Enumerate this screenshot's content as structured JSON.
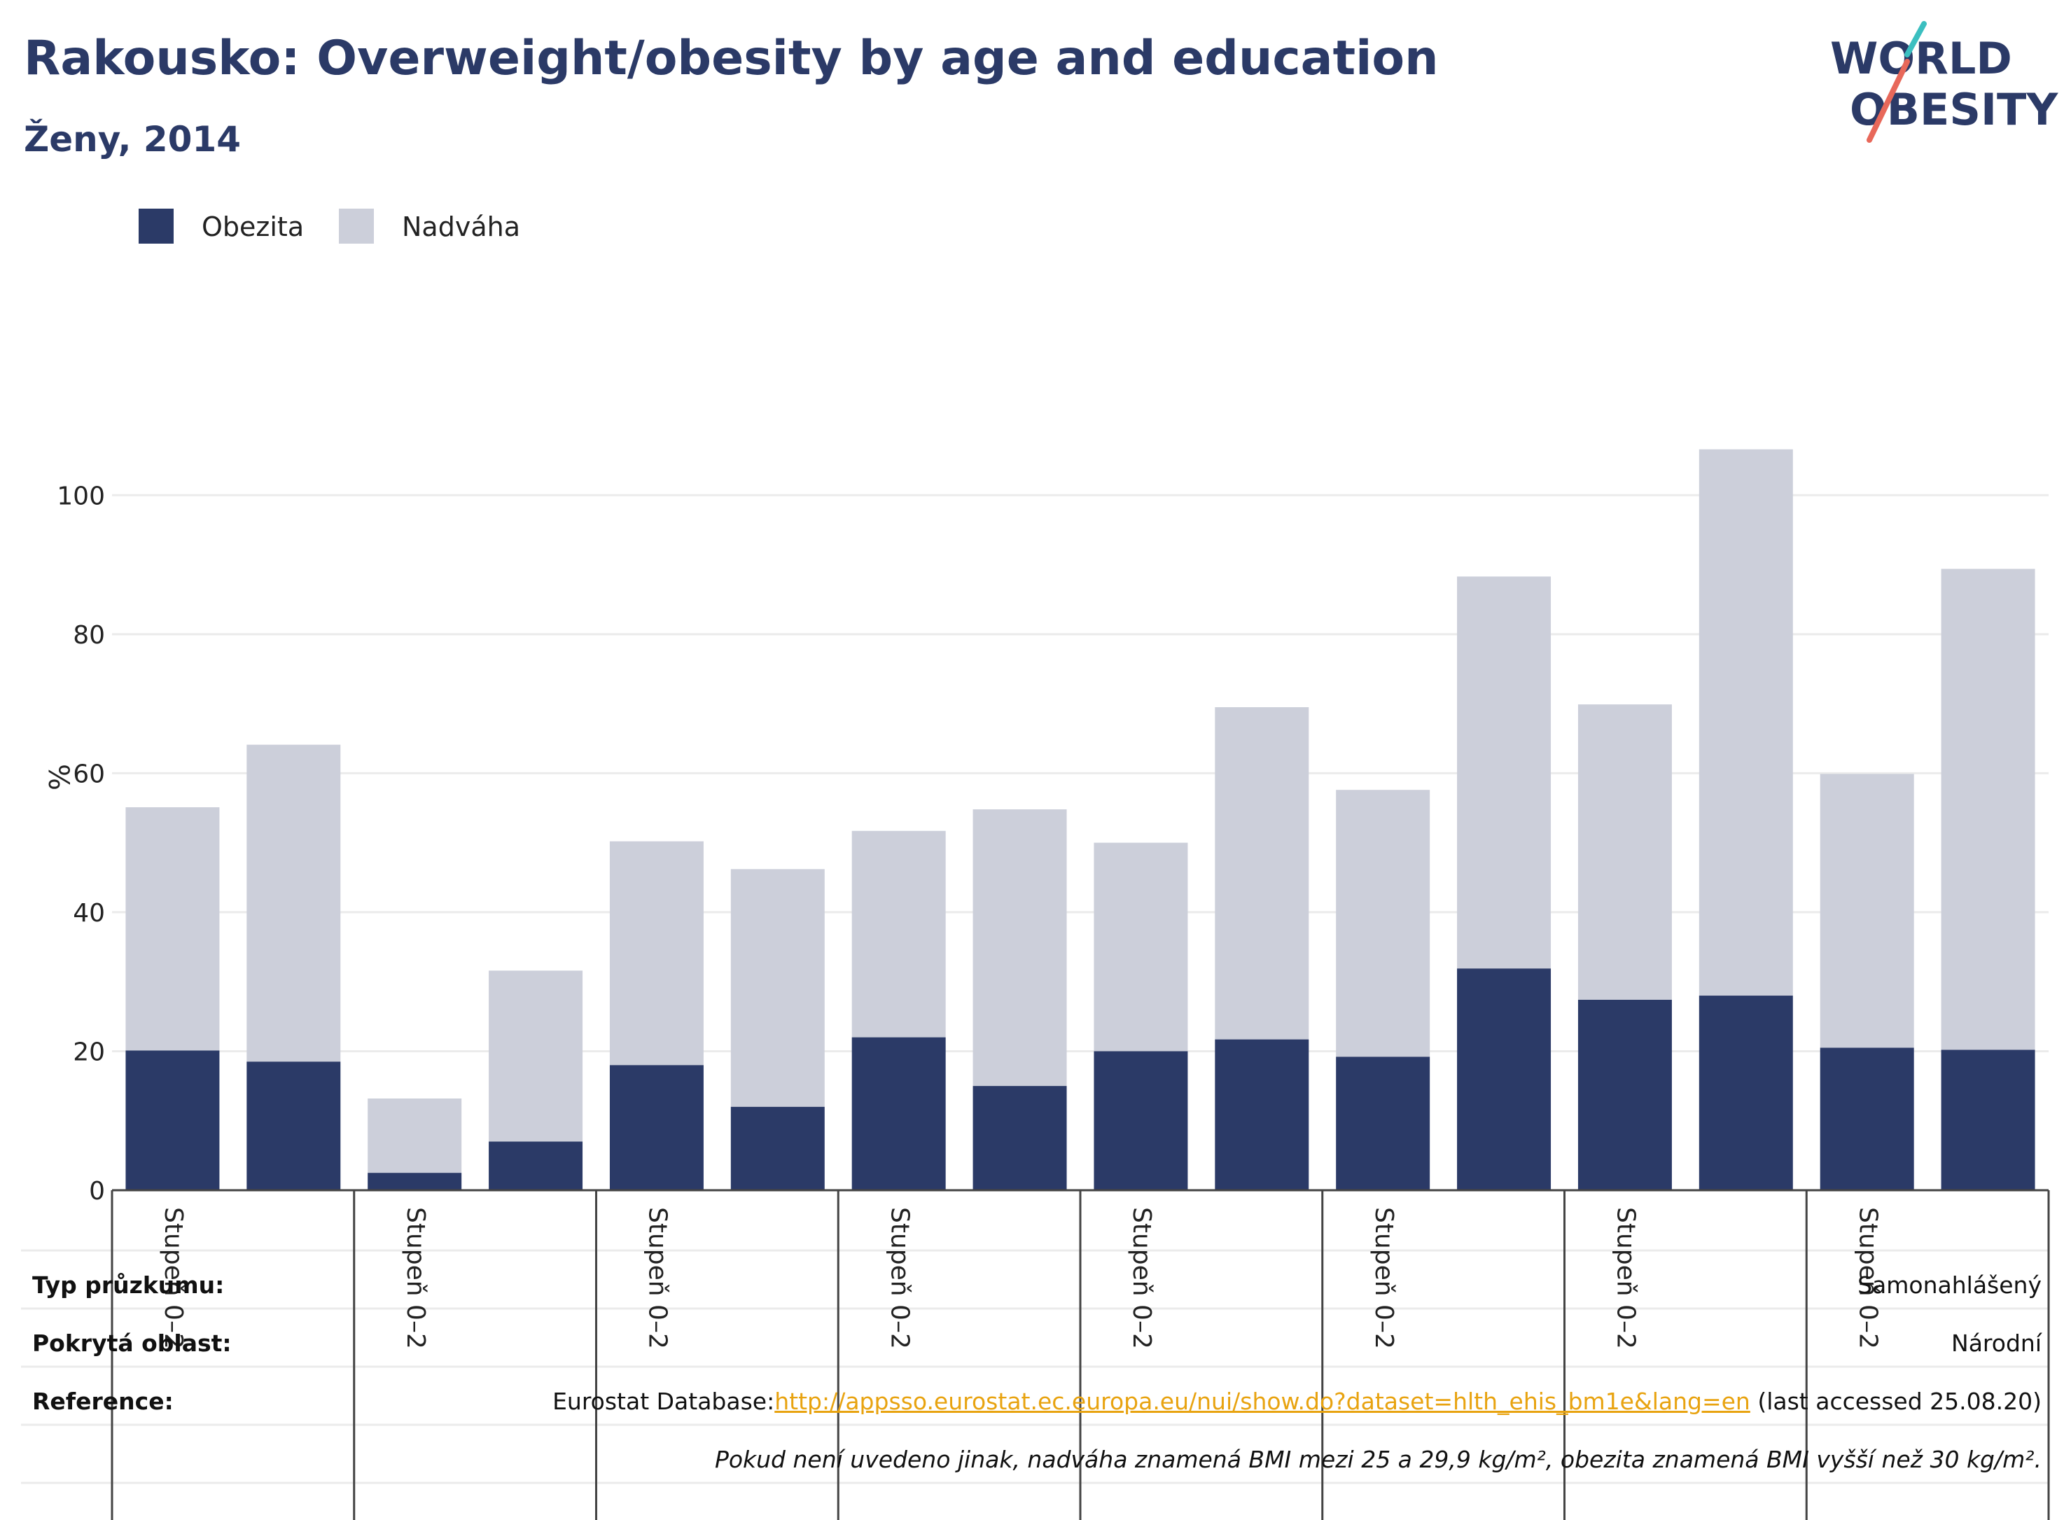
{
  "header": {
    "title": "Rakousko: Overweight/obesity by age and education",
    "subtitle": "Ženy, 2014"
  },
  "logo": {
    "line1": "WORLD",
    "line2": "OBESITY"
  },
  "colors": {
    "obesity": "#2b3a67",
    "overweight": "#cccfda",
    "title": "#2b3a67",
    "link": "#e8a310",
    "logo_teal": "#3bbfc0",
    "logo_coral": "#e8685a"
  },
  "legend": {
    "obesity_label": "Obezita",
    "overweight_label": "Nadváha"
  },
  "chart_data": {
    "type": "bar",
    "stacked": true,
    "ylabel": "%",
    "ylim": [
      0,
      110
    ],
    "yticks": [
      0,
      20,
      40,
      60,
      80,
      100
    ],
    "grid": true,
    "legend_position": "top-left",
    "x_group_labels": [
      "Stupeň 0–2",
      "Stupeň 0–2",
      "Stupeň 0–2",
      "Stupeň 0–2",
      "Stupeň 0–2",
      "Stupeň 0–2",
      "Stupeň 0–2",
      "Stupeň 0–2"
    ],
    "series": [
      {
        "name": "Obezita",
        "values": [
          20.1,
          18.5,
          2.5,
          7.0,
          18.0,
          12.0,
          22.0,
          15.0,
          20.0,
          21.7,
          19.2,
          31.9,
          27.4,
          28.0,
          20.5,
          20.2
        ]
      },
      {
        "name": "Nadváha",
        "values": [
          35.0,
          45.6,
          10.7,
          24.6,
          32.2,
          34.2,
          29.7,
          39.8,
          30.0,
          47.8,
          38.4,
          56.4,
          42.5,
          78.6,
          39.4,
          69.2
        ]
      }
    ]
  },
  "info": {
    "survey_type_label": "Typ průzkumu:",
    "survey_type_value": "Samonahlášený",
    "area_label": "Pokrytá oblast:",
    "area_value": "Národní",
    "reference_label": "Reference:",
    "reference_prefix": "Eurostat Database:",
    "reference_link": "http://appsso.eurostat.ec.europa.eu/nui/show.do?dataset=hlth_ehis_bm1e&lang=en",
    "reference_suffix": " (last accessed 25.08.20)",
    "note": "Pokud není uvedeno jinak, nadváha znamená BMI mezi 25 a 29,9 kg/m², obezita znamená BMI vyšší než 30 kg/m²."
  }
}
